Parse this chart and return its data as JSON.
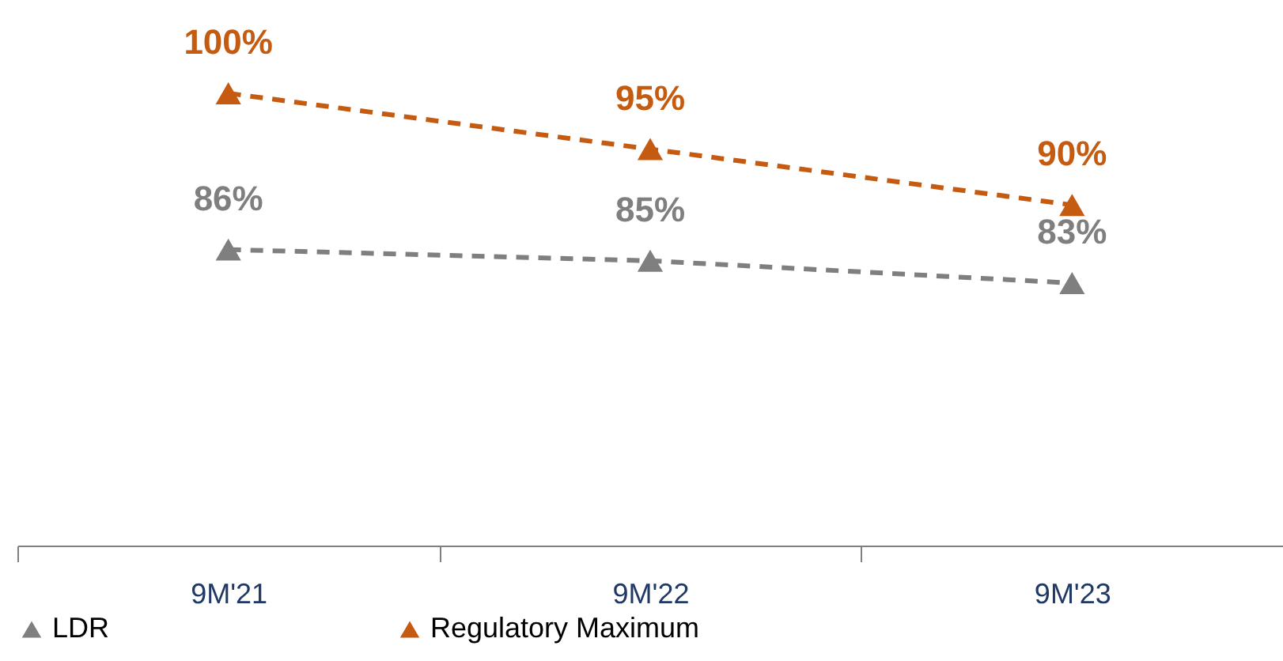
{
  "chart_data": {
    "type": "line",
    "categories": [
      "9M'21",
      "9M'22",
      "9M'23"
    ],
    "series": [
      {
        "name": "LDR",
        "color": "#7f7f7f",
        "values": [
          86,
          85,
          83
        ],
        "value_labels": [
          "86%",
          "85%",
          "83%"
        ]
      },
      {
        "name": "Regulatory Maximum",
        "color": "#c55a11",
        "values": [
          100,
          95,
          90
        ],
        "value_labels": [
          "100%",
          "95%",
          "90%"
        ]
      }
    ],
    "tick_labels": "x",
    "grid": false,
    "legend": "bottom",
    "marker": "triangle",
    "line_style": "dashed"
  }
}
